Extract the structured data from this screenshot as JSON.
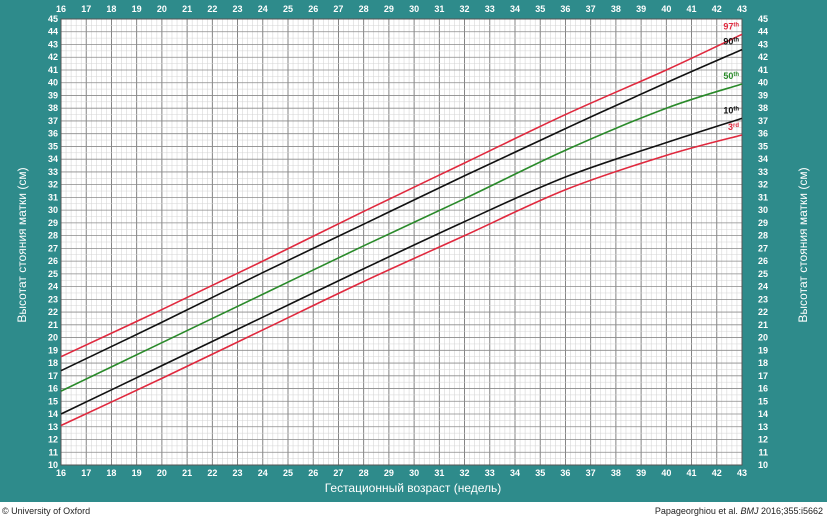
{
  "chart_data": {
    "type": "line",
    "xlabel": "Гестационный возраст (недель)",
    "ylabel": "Высотат стояния матки (см)",
    "xlim": [
      16,
      43
    ],
    "ylim": [
      10,
      45
    ],
    "x_ticks": [
      16,
      17,
      18,
      19,
      20,
      21,
      22,
      23,
      24,
      25,
      26,
      27,
      28,
      29,
      30,
      31,
      32,
      33,
      34,
      35,
      36,
      37,
      38,
      39,
      40,
      41,
      42,
      43
    ],
    "y_ticks": [
      10,
      11,
      12,
      13,
      14,
      15,
      16,
      17,
      18,
      19,
      20,
      21,
      22,
      23,
      24,
      25,
      26,
      27,
      28,
      29,
      30,
      31,
      32,
      33,
      34,
      35,
      36,
      37,
      38,
      39,
      40,
      41,
      42,
      43,
      44,
      45
    ],
    "grid": true,
    "series": [
      {
        "name": "97",
        "sup": "th",
        "color": "#e0293e",
        "x": [
          16,
          20,
          24,
          28,
          32,
          36,
          40,
          43
        ],
        "y": [
          18.5,
          22.2,
          26.0,
          29.9,
          33.7,
          37.5,
          41.0,
          43.8
        ]
      },
      {
        "name": "90",
        "sup": "th",
        "color": "#111111",
        "x": [
          16,
          20,
          24,
          28,
          32,
          36,
          40,
          43
        ],
        "y": [
          17.4,
          21.2,
          25.1,
          28.9,
          32.7,
          36.4,
          40.0,
          42.6
        ]
      },
      {
        "name": "50",
        "sup": "th",
        "color": "#2a8a2a",
        "x": [
          16,
          20,
          24,
          28,
          32,
          36,
          40,
          43
        ],
        "y": [
          15.8,
          19.6,
          23.4,
          27.2,
          30.9,
          34.7,
          38.0,
          39.9
        ]
      },
      {
        "name": "10",
        "sup": "th",
        "color": "#111111",
        "x": [
          16,
          20,
          24,
          28,
          32,
          36,
          40,
          43
        ],
        "y": [
          14.0,
          17.8,
          21.6,
          25.4,
          29.1,
          32.6,
          35.3,
          37.2
        ]
      },
      {
        "name": "3",
        "sup": "rd",
        "color": "#e0293e",
        "x": [
          16,
          20,
          24,
          28,
          32,
          36,
          40,
          43
        ],
        "y": [
          13.1,
          16.8,
          20.6,
          24.4,
          28.0,
          31.6,
          34.3,
          35.9
        ]
      }
    ]
  },
  "footer": {
    "left": "© University of Oxford",
    "right_prefix": "Papageorghiou et al. ",
    "right_journal": "BMJ",
    "right_suffix": " 2016;355:i5662"
  }
}
